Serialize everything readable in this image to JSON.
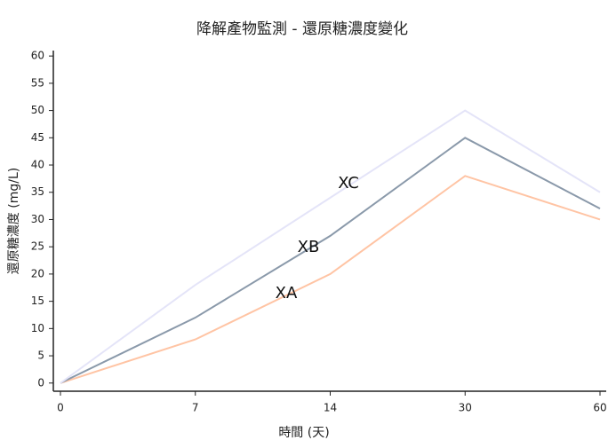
{
  "chart_data": {
    "type": "line",
    "title": "降解產物監測 - 還原糖濃度變化",
    "x_label": "時間 (天)",
    "y_label": "還原糖濃度 (mg/L)",
    "categories": [
      "0",
      "7",
      "14",
      "30",
      "60"
    ],
    "series": [
      {
        "name": "XA",
        "color": "#ffc4a4",
        "values": [
          0,
          8,
          20,
          38,
          30
        ]
      },
      {
        "name": "XB",
        "color": "#8a99aa",
        "values": [
          0,
          12,
          27,
          45,
          32
        ]
      },
      {
        "name": "XC",
        "color": "#e4e4f8",
        "values": [
          0,
          18,
          34,
          50,
          35
        ]
      }
    ],
    "ylim": [
      -1.5,
      61
    ],
    "yticks": [
      0,
      5,
      10,
      15,
      20,
      25,
      30,
      35,
      40,
      45,
      50,
      55,
      60
    ],
    "grid": false
  }
}
